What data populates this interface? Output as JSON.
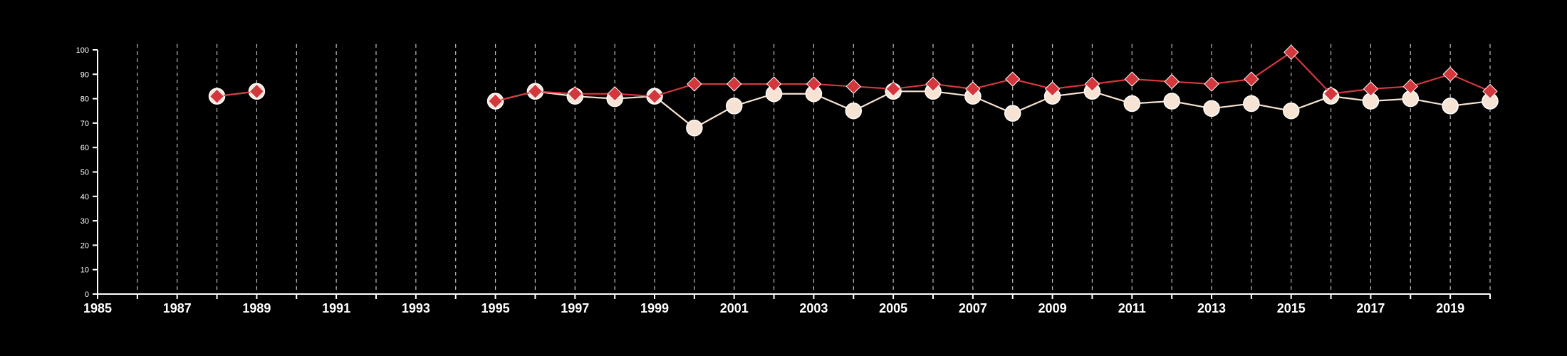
{
  "chart_data": {
    "type": "line",
    "title": "",
    "xlabel": "",
    "ylabel": "",
    "xlim": [
      1985,
      2020
    ],
    "ylim": [
      0,
      100
    ],
    "x_ticks": [
      "1985",
      "1987",
      "1989",
      "1991",
      "1993",
      "1995",
      "1997",
      "1999",
      "2001",
      "2003",
      "2005",
      "2007",
      "2009",
      "2011",
      "2013",
      "2015",
      "2017",
      "2019"
    ],
    "y_ticks": [
      "0",
      "10",
      "20",
      "30",
      "40",
      "50",
      "60",
      "70",
      "80",
      "90",
      "100"
    ],
    "grid": "vertical dashed lines at each year",
    "legend": "none",
    "series": [
      {
        "color": "#f6e3d3",
        "marker": "circle",
        "points": [
          [
            1988,
            81
          ],
          [
            1989,
            83
          ],
          [
            1995,
            79
          ],
          [
            1996,
            83
          ],
          [
            1997,
            81
          ],
          [
            1998,
            80
          ],
          [
            1999,
            81
          ],
          [
            2000,
            68
          ],
          [
            2001,
            77
          ],
          [
            2002,
            82
          ],
          [
            2003,
            82
          ],
          [
            2004,
            75
          ],
          [
            2005,
            83
          ],
          [
            2006,
            83
          ],
          [
            2007,
            81
          ],
          [
            2008,
            74
          ],
          [
            2009,
            81
          ],
          [
            2010,
            83
          ],
          [
            2011,
            78
          ],
          [
            2012,
            79
          ],
          [
            2013,
            76
          ],
          [
            2014,
            78
          ],
          [
            2015,
            75
          ],
          [
            2016,
            81
          ],
          [
            2017,
            79
          ],
          [
            2018,
            80
          ],
          [
            2019,
            77
          ],
          [
            2020,
            79
          ]
        ]
      },
      {
        "color": "#d3373c",
        "marker": "diamond",
        "points": [
          [
            1988,
            81
          ],
          [
            1989,
            83
          ],
          [
            1995,
            79
          ],
          [
            1996,
            83
          ],
          [
            1997,
            82
          ],
          [
            1998,
            82
          ],
          [
            1999,
            81
          ],
          [
            2000,
            86
          ],
          [
            2001,
            86
          ],
          [
            2002,
            86
          ],
          [
            2003,
            86
          ],
          [
            2004,
            85
          ],
          [
            2005,
            84
          ],
          [
            2006,
            86
          ],
          [
            2007,
            84
          ],
          [
            2008,
            88
          ],
          [
            2009,
            84
          ],
          [
            2010,
            86
          ],
          [
            2011,
            88
          ],
          [
            2012,
            87
          ],
          [
            2013,
            86
          ],
          [
            2014,
            88
          ],
          [
            2015,
            99
          ],
          [
            2016,
            82
          ],
          [
            2017,
            84
          ],
          [
            2018,
            85
          ],
          [
            2019,
            90
          ],
          [
            2020,
            83
          ]
        ]
      }
    ]
  }
}
